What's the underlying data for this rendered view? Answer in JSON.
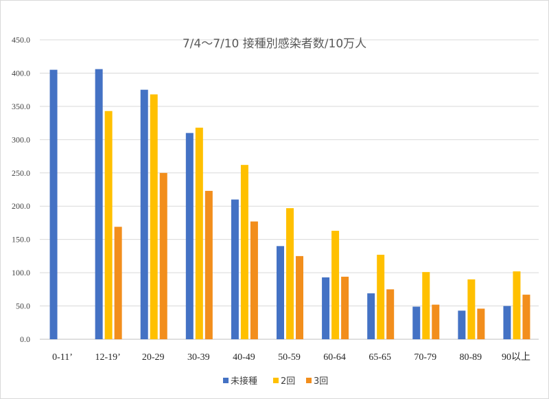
{
  "chart_data": {
    "type": "bar",
    "title": "7/4～7/10 接種別感染者数/10万人",
    "categories": [
      "0-11’",
      "12-19’",
      "20-29",
      "30-39",
      "40-49",
      "50-59",
      "60-64",
      "65-65",
      "70-79",
      "80-89",
      "90以上"
    ],
    "series": [
      {
        "name": "未接種",
        "color": "#4472c4",
        "values": [
          405,
          406,
          375,
          310,
          210,
          140,
          93,
          69,
          49,
          43,
          50
        ]
      },
      {
        "name": "2回",
        "color": "#ffc000",
        "values": [
          null,
          343,
          368,
          318,
          262,
          197,
          163,
          127,
          101,
          90,
          102
        ]
      },
      {
        "name": "3回",
        "color": "#f28e1c",
        "values": [
          null,
          169,
          250,
          223,
          177,
          125,
          94,
          75,
          52,
          46,
          67
        ]
      }
    ],
    "ylim": [
      0,
      450
    ],
    "yticks": [
      "0.0",
      "50.0",
      "100.0",
      "150.0",
      "200.0",
      "250.0",
      "300.0",
      "350.0",
      "400.0",
      "450.0"
    ],
    "ytick_values": [
      0,
      50,
      100,
      150,
      200,
      250,
      300,
      350,
      400,
      450
    ],
    "grid": true,
    "legend_position": "bottom"
  }
}
